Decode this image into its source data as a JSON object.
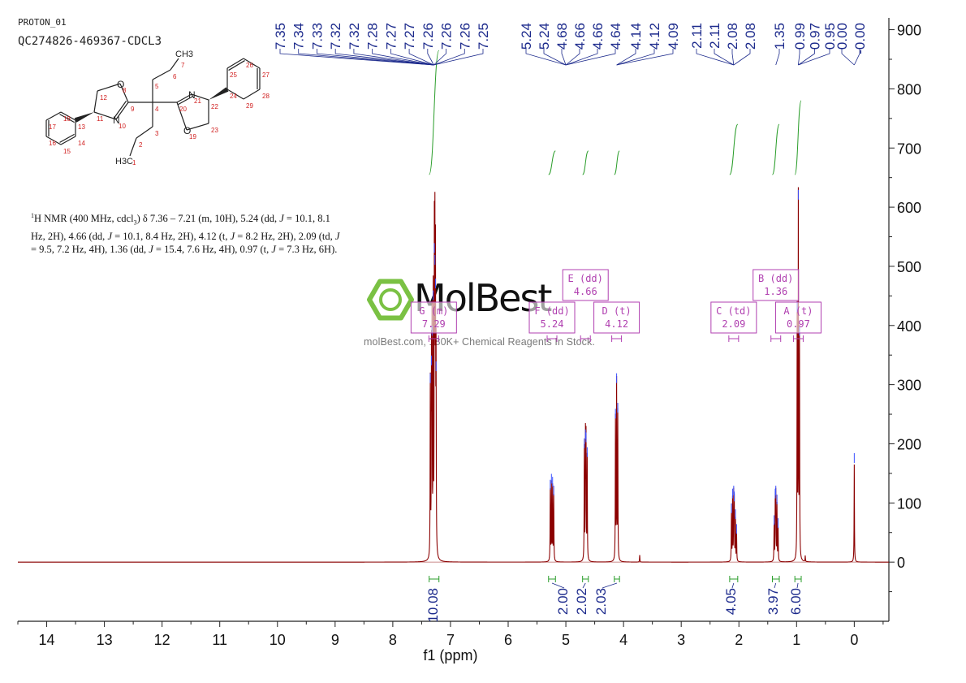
{
  "header": {
    "experiment": "PROTON_01",
    "sample": "QC274826-469367-CDCL3"
  },
  "nmr_summary": {
    "nucleus_sup": "1",
    "segments": [
      {
        "t": "H NMR (400 MHz, cdcl",
        "i": false
      },
      {
        "t": "3",
        "sub": true
      },
      {
        "t": ") δ 7.36 – 7.21 (m, 10H), 5.24 (dd, ",
        "i": false
      },
      {
        "t": "J",
        "i": true
      },
      {
        "t": " = 10.1, 8.1 Hz, 2H), 4.66 (dd, ",
        "i": false
      },
      {
        "t": "J",
        "i": true
      },
      {
        "t": " = 10.1, 8.4 Hz, 2H), 4.12 (t, ",
        "i": false
      },
      {
        "t": "J",
        "i": true
      },
      {
        "t": " = 8.2 Hz, 2H), 2.09 (td, ",
        "i": false
      },
      {
        "t": "J",
        "i": true
      },
      {
        "t": " = 9.5, 7.2 Hz, 4H), 1.36 (dd, ",
        "i": false
      },
      {
        "t": "J",
        "i": true
      },
      {
        "t": " = 15.4, 7.6 Hz, 4H), 0.97 (t, ",
        "i": false
      },
      {
        "t": "J",
        "i": true
      },
      {
        "t": " = 7.3 Hz, 6H).",
        "i": false
      }
    ]
  },
  "watermark": {
    "logo_text": "MolBest",
    "tagline": "molBest.com, 180K+ Chemical Reagents In Stock."
  },
  "structure": {
    "ch3_top": "CH3",
    "ch3_bottom": "H3C",
    "atoms_O": [
      "O",
      "O"
    ],
    "atoms_N": [
      "N",
      "N"
    ],
    "atom_numbers": [
      "1",
      "2",
      "3",
      "4",
      "5",
      "6",
      "7",
      "8",
      "9",
      "10",
      "11",
      "12",
      "13",
      "14",
      "15",
      "16",
      "17",
      "18",
      "19",
      "20",
      "21",
      "22",
      "23",
      "24",
      "25",
      "26",
      "27",
      "28",
      "29"
    ]
  },
  "chart_data": {
    "type": "line",
    "xlabel": "f1 (ppm)",
    "x_range": [
      14.5,
      -0.6
    ],
    "y_range": [
      -100,
      920
    ],
    "x_ticks": [
      14,
      13,
      12,
      11,
      10,
      9,
      8,
      7,
      6,
      5,
      4,
      3,
      2,
      1,
      0
    ],
    "y_ticks": [
      900,
      800,
      700,
      600,
      500,
      400,
      300,
      200,
      100,
      0
    ],
    "peak_labels": [
      "7.35",
      "7.34",
      "7.33",
      "7.32",
      "7.32",
      "7.28",
      "7.27",
      "7.27",
      "7.26",
      "7.26",
      "7.26",
      "7.25",
      "5.24",
      "5.24",
      "4.68",
      "4.66",
      "4.66",
      "4.64",
      "4.14",
      "4.12",
      "4.09",
      "2.11",
      "2.11",
      "2.08",
      "2.08",
      "1.35",
      "0.99",
      "0.97",
      "0.95",
      "0.00",
      "-0.00"
    ],
    "peaks": [
      {
        "ppm": 7.35,
        "height": 300
      },
      {
        "ppm": 7.33,
        "height": 330
      },
      {
        "ppm": 7.32,
        "height": 380
      },
      {
        "ppm": 7.3,
        "height": 440
      },
      {
        "ppm": 7.28,
        "height": 520
      },
      {
        "ppm": 7.27,
        "height": 500
      },
      {
        "ppm": 7.26,
        "height": 460
      },
      {
        "ppm": 7.25,
        "height": 320
      },
      {
        "ppm": 5.27,
        "height": 120
      },
      {
        "ppm": 5.25,
        "height": 130
      },
      {
        "ppm": 5.23,
        "height": 125
      },
      {
        "ppm": 5.21,
        "height": 110
      },
      {
        "ppm": 4.68,
        "height": 190
      },
      {
        "ppm": 4.66,
        "height": 205
      },
      {
        "ppm": 4.65,
        "height": 200
      },
      {
        "ppm": 4.63,
        "height": 175
      },
      {
        "ppm": 4.14,
        "height": 240
      },
      {
        "ppm": 4.12,
        "height": 300
      },
      {
        "ppm": 4.1,
        "height": 250
      },
      {
        "ppm": 2.13,
        "height": 80
      },
      {
        "ppm": 2.11,
        "height": 105
      },
      {
        "ppm": 2.09,
        "height": 110
      },
      {
        "ppm": 2.08,
        "height": 100
      },
      {
        "ppm": 2.06,
        "height": 70
      },
      {
        "ppm": 2.04,
        "height": 45
      },
      {
        "ppm": 1.39,
        "height": 60
      },
      {
        "ppm": 1.37,
        "height": 105
      },
      {
        "ppm": 1.36,
        "height": 110
      },
      {
        "ppm": 1.34,
        "height": 95
      },
      {
        "ppm": 1.32,
        "height": 55
      },
      {
        "ppm": 0.99,
        "height": 420
      },
      {
        "ppm": 0.97,
        "height": 610
      },
      {
        "ppm": 0.95,
        "height": 380
      },
      {
        "ppm": 0.0,
        "height": 165
      },
      {
        "ppm": 3.72,
        "height": 12
      },
      {
        "ppm": 0.85,
        "height": 10
      }
    ],
    "multiplets": [
      {
        "label": "G (m)",
        "shift": "7.29",
        "ppm": 7.29,
        "level": "low"
      },
      {
        "label": "F (dd)",
        "shift": "5.24",
        "ppm": 5.24,
        "level": "low"
      },
      {
        "label": "E (dd)",
        "shift": "4.66",
        "ppm": 4.66,
        "level": "high"
      },
      {
        "label": "D (t)",
        "shift": "4.12",
        "ppm": 4.12,
        "level": "low"
      },
      {
        "label": "C (td)",
        "shift": "2.09",
        "ppm": 2.09,
        "level": "low"
      },
      {
        "label": "B (dd)",
        "shift": "1.36",
        "ppm": 1.36,
        "level": "high"
      },
      {
        "label": "A (t)",
        "shift": "0.97",
        "ppm": 0.97,
        "level": "low"
      }
    ],
    "integrals": [
      {
        "value": "10.08",
        "from": 7.37,
        "to": 7.2,
        "cum_start": 655,
        "cum_end": 865
      },
      {
        "value": "2.00",
        "from": 5.3,
        "to": 5.18,
        "cum_start": 655,
        "cum_end": 695
      },
      {
        "value": "2.02",
        "from": 4.71,
        "to": 4.61,
        "cum_start": 655,
        "cum_end": 695
      },
      {
        "value": "2.03",
        "from": 4.16,
        "to": 4.07,
        "cum_start": 655,
        "cum_end": 695
      },
      {
        "value": "4.05",
        "from": 2.16,
        "to": 2.02,
        "cum_start": 655,
        "cum_end": 740
      },
      {
        "value": "3.97",
        "from": 1.42,
        "to": 1.3,
        "cum_start": 655,
        "cum_end": 740
      },
      {
        "value": "6.00",
        "from": 1.03,
        "to": 0.92,
        "cum_start": 655,
        "cum_end": 780
      }
    ],
    "colors": {
      "spectrum": "#8b0000",
      "peak_marker": "#3a50ff",
      "label_text": "#1c2a8c",
      "integral": "#2a9d2a",
      "multiplet_box": "#b03fb0",
      "axis": "#222222"
    }
  }
}
